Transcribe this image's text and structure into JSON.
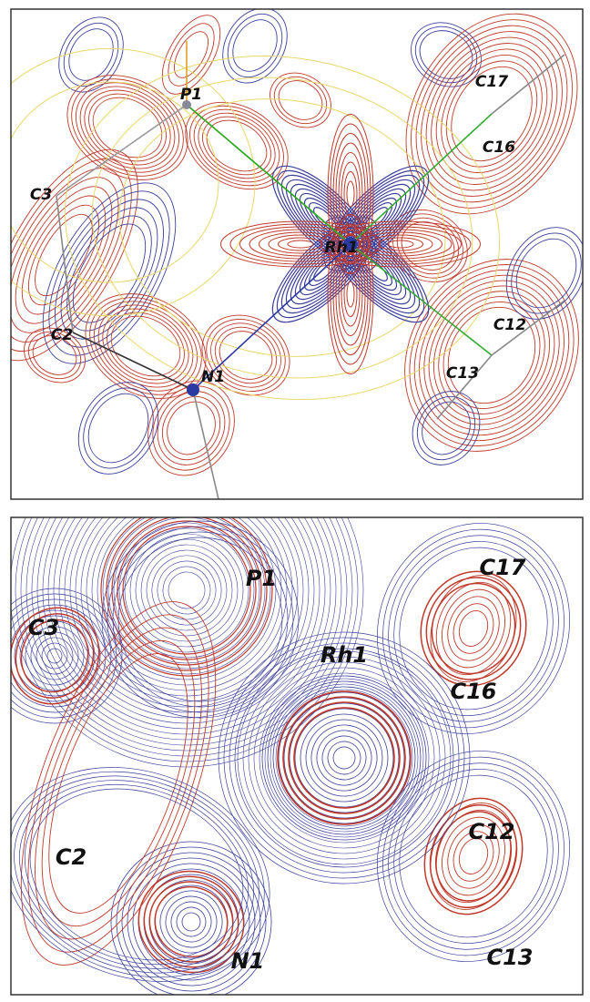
{
  "panels": [
    {
      "labels": [
        "P1",
        "C17",
        "C16",
        "C3",
        "Rh1",
        "C2",
        "C12",
        "C13",
        "N1"
      ]
    },
    {
      "labels": [
        "P1",
        "C17",
        "C3",
        "Rh1",
        "C16",
        "C12",
        "C2",
        "N1",
        "C13"
      ]
    }
  ]
}
